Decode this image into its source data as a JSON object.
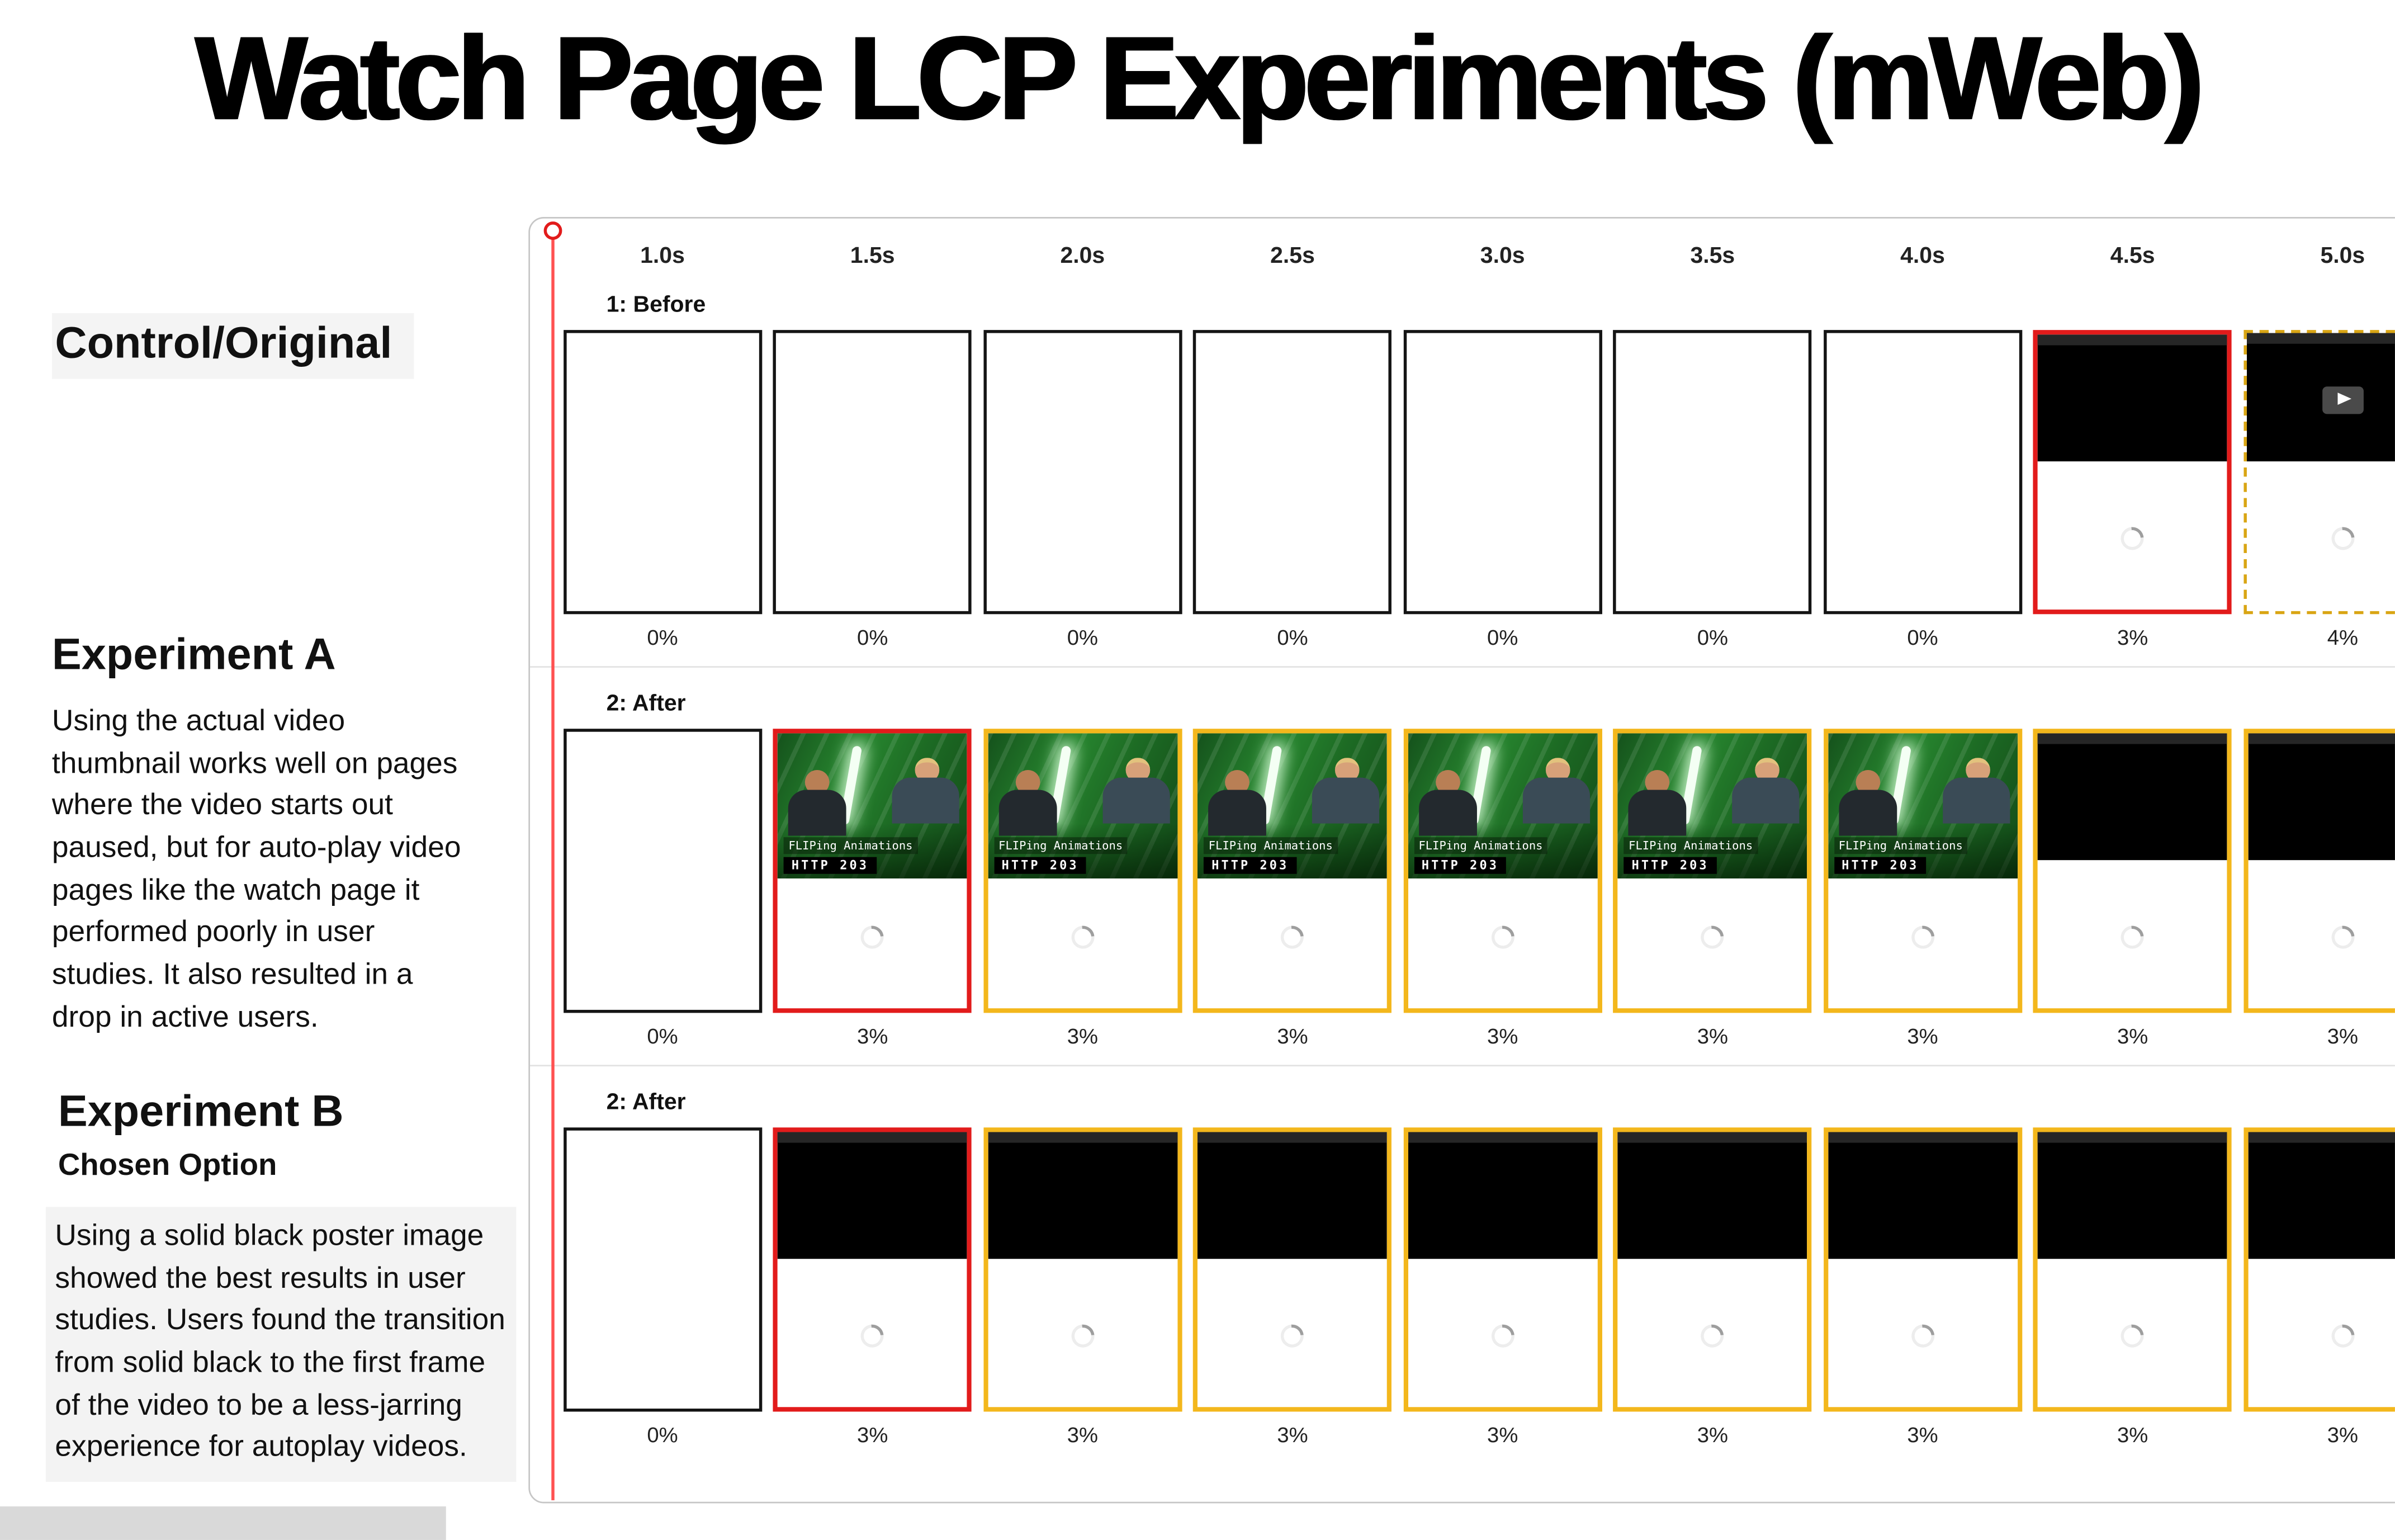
{
  "title": "Watch Page LCP Experiments (mWeb)",
  "sidebar": {
    "control_heading": "Control/Original",
    "experiment_a": {
      "heading": "Experiment A",
      "body": "Using the actual video thumbnail works well on pages where the video starts out paused, but for auto-play video pages like the watch page it performed poorly in user studies. It also resulted in a drop in active users."
    },
    "experiment_b": {
      "heading": "Experiment B",
      "subheading": "Chosen Option",
      "body": "Using a solid black poster image showed the best results in user studies. Users found the transition from solid black to the first frame of the video to be a less-jarring experience for autoplay videos."
    }
  },
  "filmstrip": {
    "time_labels": [
      "1.0s",
      "1.5s",
      "2.0s",
      "2.5s",
      "3.0s",
      "3.5s",
      "4.0s",
      "4.5s",
      "5.0s"
    ],
    "thumbnail": {
      "line1": "FLIPing Animations",
      "line2": "HTTP 203"
    },
    "rows": [
      {
        "label": "1: Before",
        "frames": [
          {
            "type": "blank",
            "border": "black",
            "pct": "0%"
          },
          {
            "type": "blank",
            "border": "black",
            "pct": "0%"
          },
          {
            "type": "blank",
            "border": "black",
            "pct": "0%"
          },
          {
            "type": "blank",
            "border": "black",
            "pct": "0%"
          },
          {
            "type": "blank",
            "border": "black",
            "pct": "0%"
          },
          {
            "type": "blank",
            "border": "black",
            "pct": "0%"
          },
          {
            "type": "blank",
            "border": "black",
            "pct": "0%"
          },
          {
            "type": "black-video",
            "border": "red",
            "pct": "3%"
          },
          {
            "type": "black-video-play",
            "border": "dashed-yellow",
            "pct": "4%"
          }
        ]
      },
      {
        "label": "2: After",
        "frames": [
          {
            "type": "blank",
            "border": "black",
            "pct": "0%"
          },
          {
            "type": "thumbnail",
            "border": "red",
            "pct": "3%"
          },
          {
            "type": "thumbnail",
            "border": "yellow",
            "pct": "3%"
          },
          {
            "type": "thumbnail",
            "border": "yellow",
            "pct": "3%"
          },
          {
            "type": "thumbnail",
            "border": "yellow",
            "pct": "3%"
          },
          {
            "type": "thumbnail",
            "border": "yellow",
            "pct": "3%"
          },
          {
            "type": "thumbnail",
            "border": "yellow",
            "pct": "3%"
          },
          {
            "type": "black-video",
            "border": "yellow",
            "pct": "3%"
          },
          {
            "type": "black-video",
            "border": "yellow",
            "pct": "3%"
          }
        ]
      },
      {
        "label": "2: After",
        "frames": [
          {
            "type": "blank",
            "border": "black",
            "pct": "0%"
          },
          {
            "type": "black-video",
            "border": "red",
            "pct": "3%"
          },
          {
            "type": "black-video",
            "border": "yellow",
            "pct": "3%"
          },
          {
            "type": "black-video",
            "border": "yellow",
            "pct": "3%"
          },
          {
            "type": "black-video",
            "border": "yellow",
            "pct": "3%"
          },
          {
            "type": "black-video",
            "border": "yellow",
            "pct": "3%"
          },
          {
            "type": "black-video",
            "border": "yellow",
            "pct": "3%"
          },
          {
            "type": "black-video",
            "border": "yellow",
            "pct": "3%"
          },
          {
            "type": "black-video",
            "border": "yellow",
            "pct": "3%"
          }
        ]
      }
    ]
  },
  "colors": {
    "red": "#e21b1b",
    "yellow": "#f3b71c",
    "yellow_dark": "#d9a514",
    "frame_black": "#141414",
    "timeline_red": "#ff5252",
    "panel_border": "#c6c6c6"
  }
}
